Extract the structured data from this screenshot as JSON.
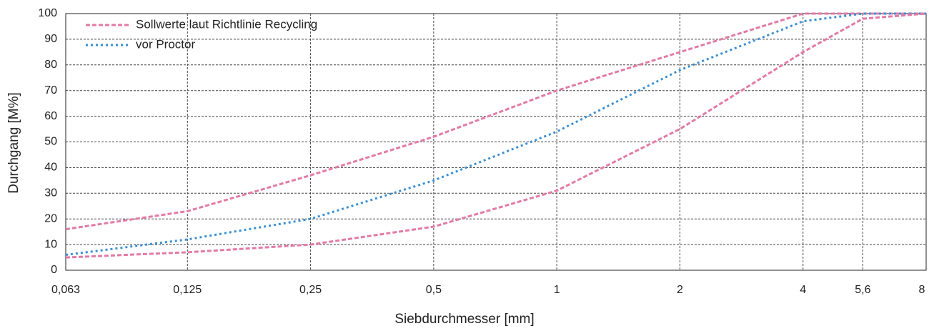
{
  "chart_data": {
    "type": "line",
    "x_label": "Siebdurchmesser [mm]",
    "y_label": "Durchgang [M%]",
    "log_x": true,
    "grid": true,
    "legend": "upper left",
    "x": [
      0.063,
      0.125,
      0.25,
      0.5,
      1,
      2,
      4,
      5.6,
      8
    ],
    "series": [
      {
        "name": "Sollwerte laut Richtlinie Recycling",
        "color": "#e27aa6",
        "style": "dashed",
        "values": [
          16,
          23,
          37,
          52,
          70,
          85,
          100,
          100,
          100
        ]
      },
      {
        "name": "vor Proctor",
        "color": "#3b8fd2",
        "style": "dotted",
        "values": [
          6,
          12,
          20,
          35,
          54,
          78,
          97,
          100,
          100
        ]
      },
      {
        "color": "#e27aa6",
        "style": "dashed",
        "values": [
          5,
          7,
          10,
          17,
          31,
          55,
          85,
          98,
          100
        ]
      }
    ],
    "xlim": [
      0.063,
      8
    ],
    "xticks": [
      {
        "value": 0.063,
        "label": "0,063"
      },
      {
        "value": 0.125,
        "label": "0,125"
      },
      {
        "value": 0.25,
        "label": "0,25"
      },
      {
        "value": 0.5,
        "label": "0,5"
      },
      1,
      2,
      4,
      {
        "value": 5.6,
        "label": "5,6"
      },
      8
    ],
    "ylim": [
      0,
      100
    ],
    "yticks": [
      0,
      10,
      20,
      30,
      40,
      50,
      60,
      70,
      80,
      90,
      100
    ]
  }
}
